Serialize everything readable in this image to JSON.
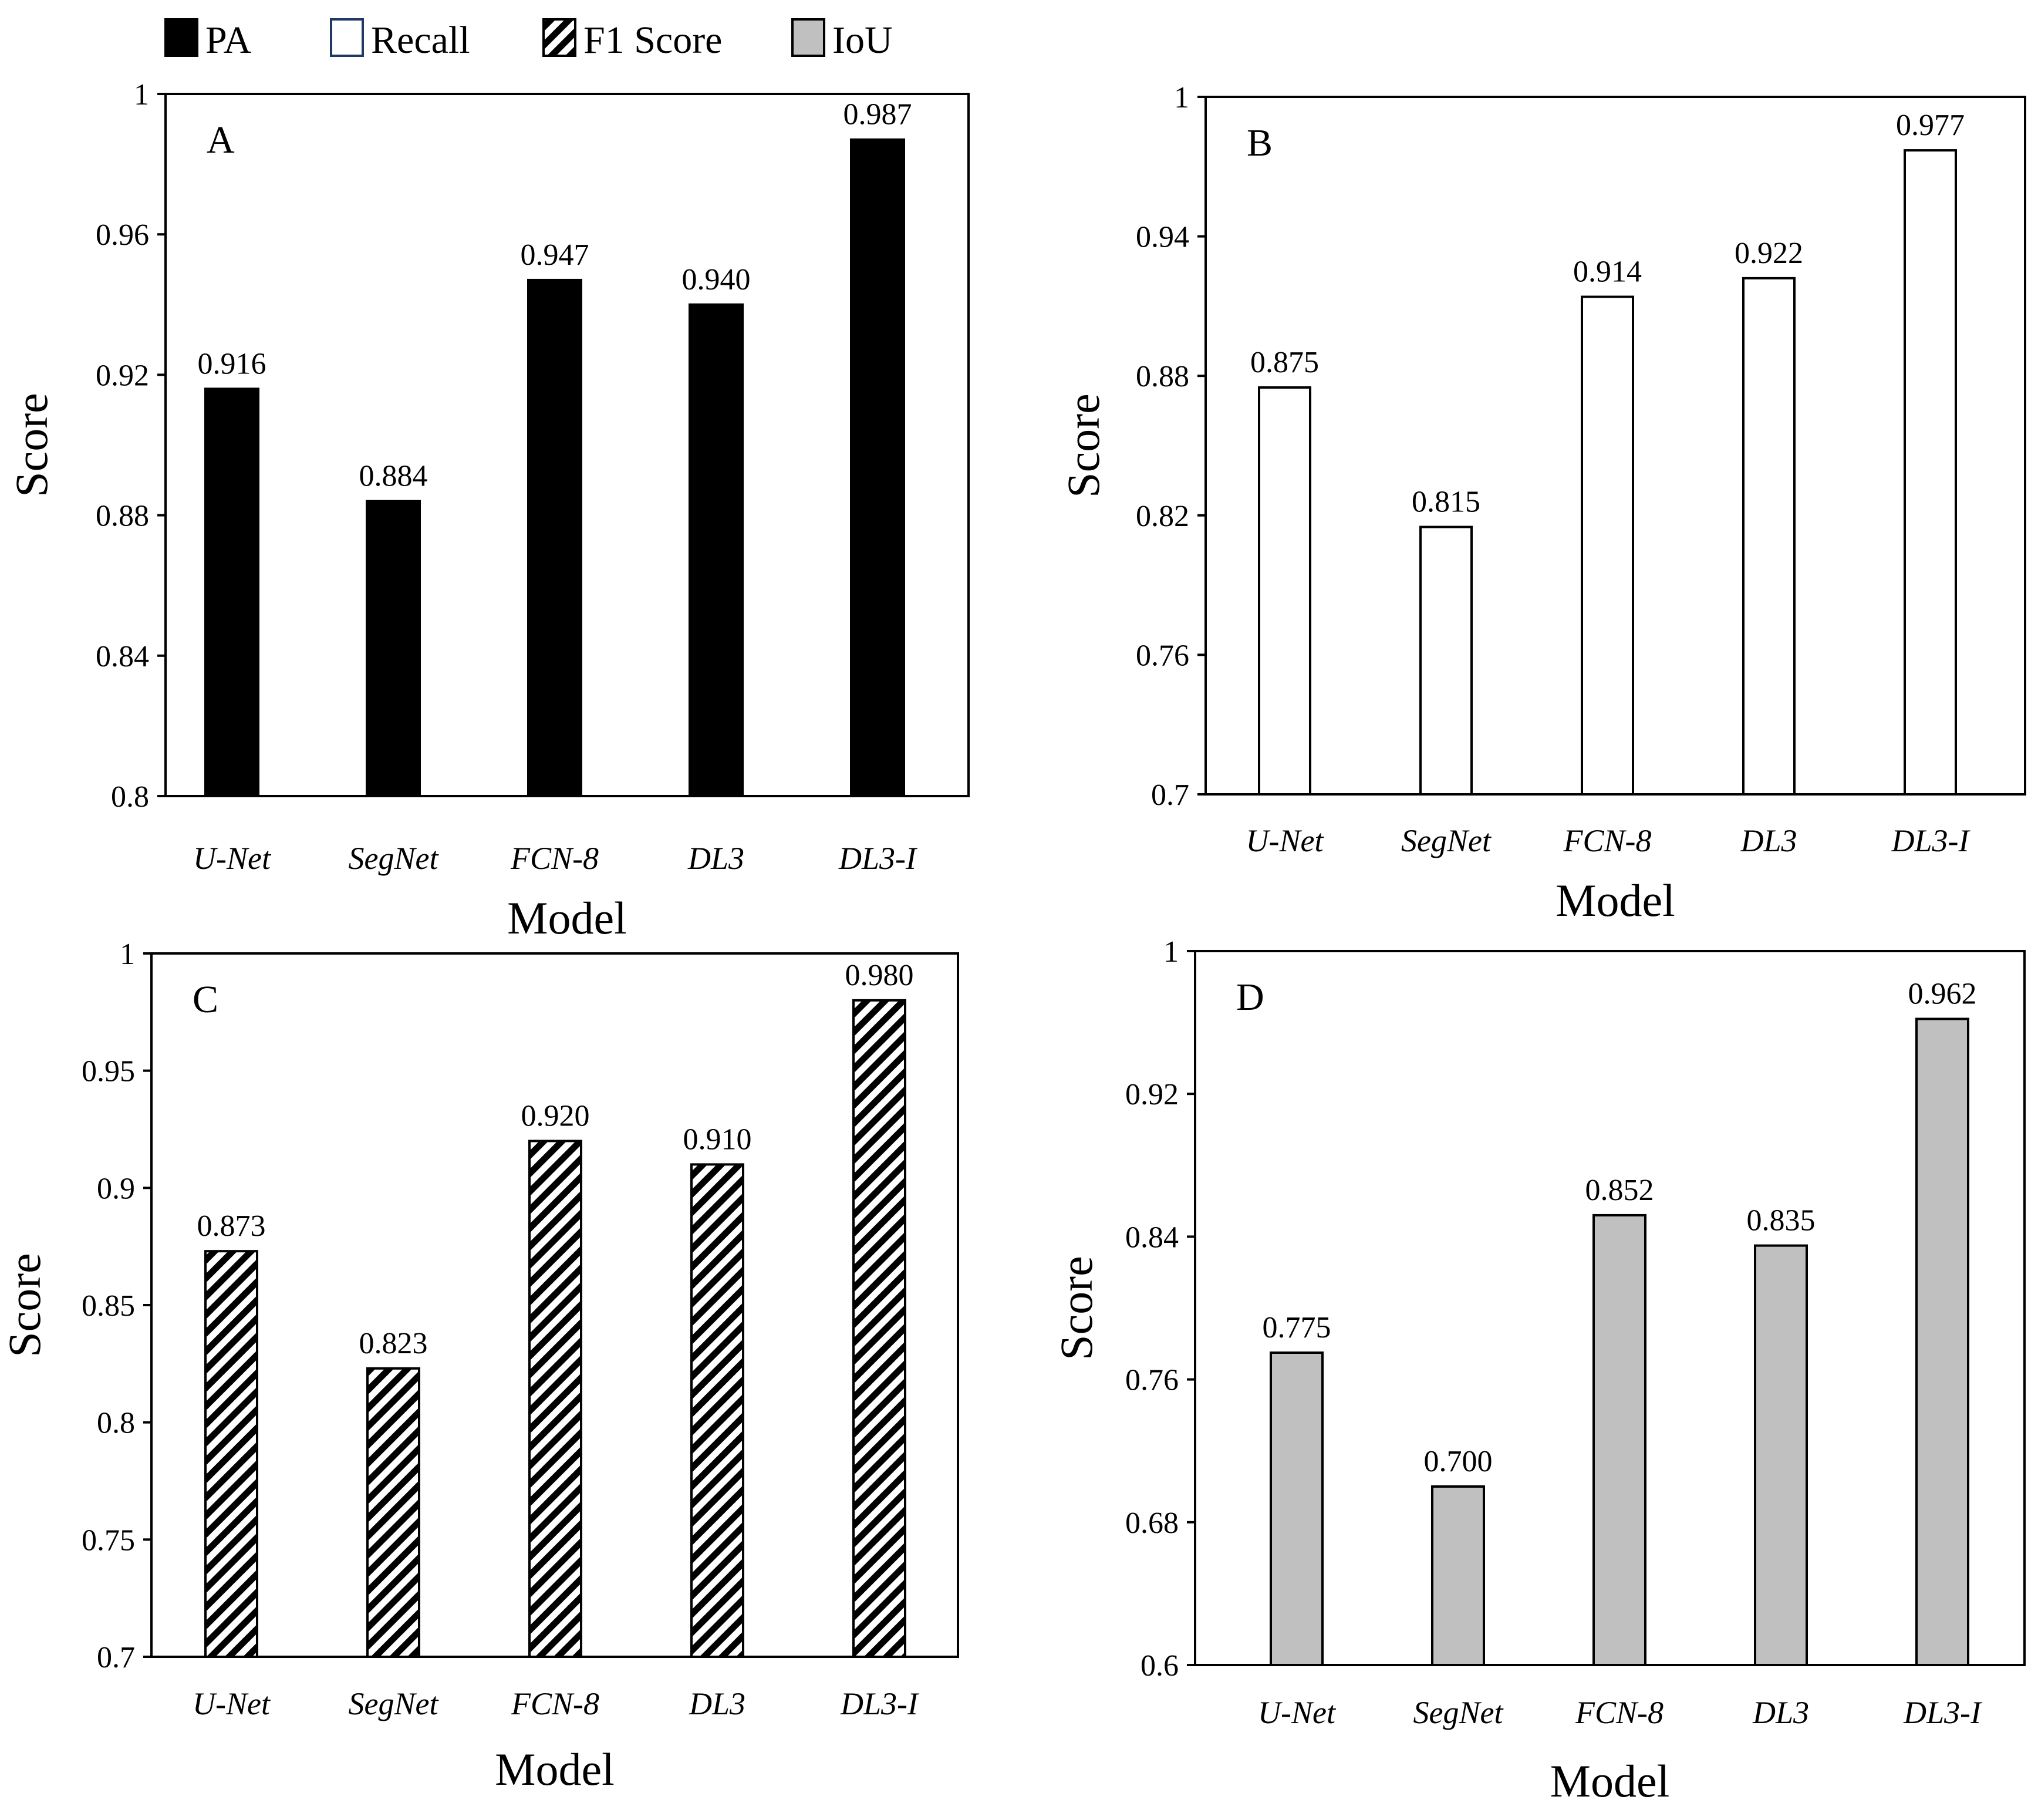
{
  "legend": [
    {
      "label": "PA",
      "fill": "black"
    },
    {
      "label": "Recall",
      "fill": "white"
    },
    {
      "label": "F1 Score",
      "fill": "hatch"
    },
    {
      "label": "IoU",
      "fill": "gray"
    }
  ],
  "colors": {
    "pa": "#000000",
    "recall": "#ffffff",
    "iou": "#c0c0c0",
    "axis": "#000000",
    "recall_legend_border": "#1f3864"
  },
  "chart_data": [
    {
      "type": "bar",
      "panel": "A",
      "metric": "PA",
      "categories": [
        "U-Net",
        "SegNet",
        "FCN-8",
        "DL3",
        "DL3-I"
      ],
      "values": [
        0.916,
        0.884,
        0.947,
        0.94,
        0.987
      ],
      "value_labels": [
        "0.916",
        "0.884",
        "0.947",
        "0.940",
        "0.987"
      ],
      "xlabel": "Model",
      "ylabel": "Score",
      "ylim": [
        0.8,
        1.0
      ],
      "ticks": [
        0.8,
        0.84,
        0.88,
        0.92,
        0.96,
        1.0
      ],
      "tick_labels": [
        "0.8",
        "0.84",
        "0.88",
        "0.92",
        "0.96",
        "1"
      ],
      "fill": "black"
    },
    {
      "type": "bar",
      "panel": "B",
      "metric": "Recall",
      "categories": [
        "U-Net",
        "SegNet",
        "FCN-8",
        "DL3",
        "DL3-I"
      ],
      "values": [
        0.875,
        0.815,
        0.914,
        0.922,
        0.977
      ],
      "value_labels": [
        "0.875",
        "0.815",
        "0.914",
        "0.922",
        "0.977"
      ],
      "xlabel": "Model",
      "ylabel": "Score",
      "ylim": [
        0.7,
        1.0
      ],
      "ticks": [
        0.7,
        0.76,
        0.82,
        0.88,
        0.94,
        1.0
      ],
      "tick_labels": [
        "0.7",
        "0.76",
        "0.82",
        "0.88",
        "0.94",
        "1"
      ],
      "fill": "white"
    },
    {
      "type": "bar",
      "panel": "C",
      "metric": "F1 Score",
      "categories": [
        "U-Net",
        "SegNet",
        "FCN-8",
        "DL3",
        "DL3-I"
      ],
      "values": [
        0.873,
        0.823,
        0.92,
        0.91,
        0.98
      ],
      "value_labels": [
        "0.873",
        "0.823",
        "0.920",
        "0.910",
        "0.980"
      ],
      "xlabel": "Model",
      "ylabel": "Score",
      "ylim": [
        0.7,
        1.0
      ],
      "ticks": [
        0.7,
        0.75,
        0.8,
        0.85,
        0.9,
        0.95,
        1.0
      ],
      "tick_labels": [
        "0.7",
        "0.75",
        "0.8",
        "0.85",
        "0.9",
        "0.95",
        "1"
      ],
      "fill": "hatch"
    },
    {
      "type": "bar",
      "panel": "D",
      "metric": "IoU",
      "categories": [
        "U-Net",
        "SegNet",
        "FCN-8",
        "DL3",
        "DL3-I"
      ],
      "values": [
        0.775,
        0.7,
        0.852,
        0.835,
        0.962
      ],
      "value_labels": [
        "0.775",
        "0.700",
        "0.852",
        "0.835",
        "0.962"
      ],
      "xlabel": "Model",
      "ylabel": "Score",
      "ylim": [
        0.6,
        1.0
      ],
      "ticks": [
        0.6,
        0.68,
        0.76,
        0.84,
        0.92,
        1.0
      ],
      "tick_labels": [
        "0.6",
        "0.68",
        "0.76",
        "0.84",
        "0.92",
        "1"
      ],
      "fill": "gray"
    }
  ]
}
